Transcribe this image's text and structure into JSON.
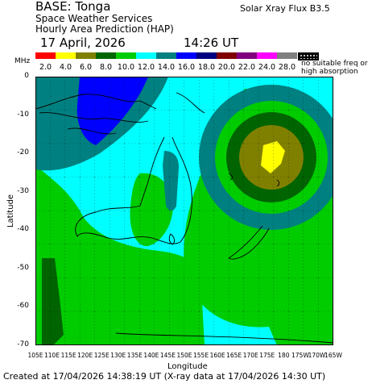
{
  "header": {
    "base": "BASE: Tonga",
    "line1": "Space Weather Services",
    "line2": "Hourly Area Prediction (HAP)",
    "flux": "Solar Xray Flux B3.5",
    "date": "17 April, 2026",
    "time": "14:26 UT"
  },
  "legend": {
    "unit": "MHz",
    "note_line1": "no suitable freq or",
    "note_line2": "high absorption",
    "items": [
      {
        "label": "2.0",
        "color": "#ff0000"
      },
      {
        "label": "4.0",
        "color": "#ffff00"
      },
      {
        "label": "6.0",
        "color": "#808000"
      },
      {
        "label": "8.0",
        "color": "#006400"
      },
      {
        "label": "10.0",
        "color": "#00cc00"
      },
      {
        "label": "12.0",
        "color": "#00ffff"
      },
      {
        "label": "14.0",
        "color": "#008080"
      },
      {
        "label": "16.0",
        "color": "#0000ff"
      },
      {
        "label": "18.0",
        "color": "#000080"
      },
      {
        "label": "20.0",
        "color": "#800000"
      },
      {
        "label": "22.0",
        "color": "#800080"
      },
      {
        "label": "24.0",
        "color": "#ff00ff"
      },
      {
        "label": "28.0",
        "color": "#808080"
      }
    ]
  },
  "axes": {
    "ylabel": "Latitude",
    "xlabel": "Longitude",
    "yticks": [
      "0",
      "-10",
      "-20",
      "-30",
      "-40",
      "-50",
      "-60",
      "-70"
    ],
    "xticks": [
      "105E",
      "110E",
      "115E",
      "120E",
      "125E",
      "130E",
      "135E",
      "140E",
      "145E",
      "150E",
      "155E",
      "160E",
      "165E",
      "170E",
      "175E",
      "180",
      "175W",
      "170W",
      "165W"
    ]
  },
  "footer": "Created at 17/04/2026 14:38:19 UT (X-ray data at 17/04/2026 14:30 UT)"
}
